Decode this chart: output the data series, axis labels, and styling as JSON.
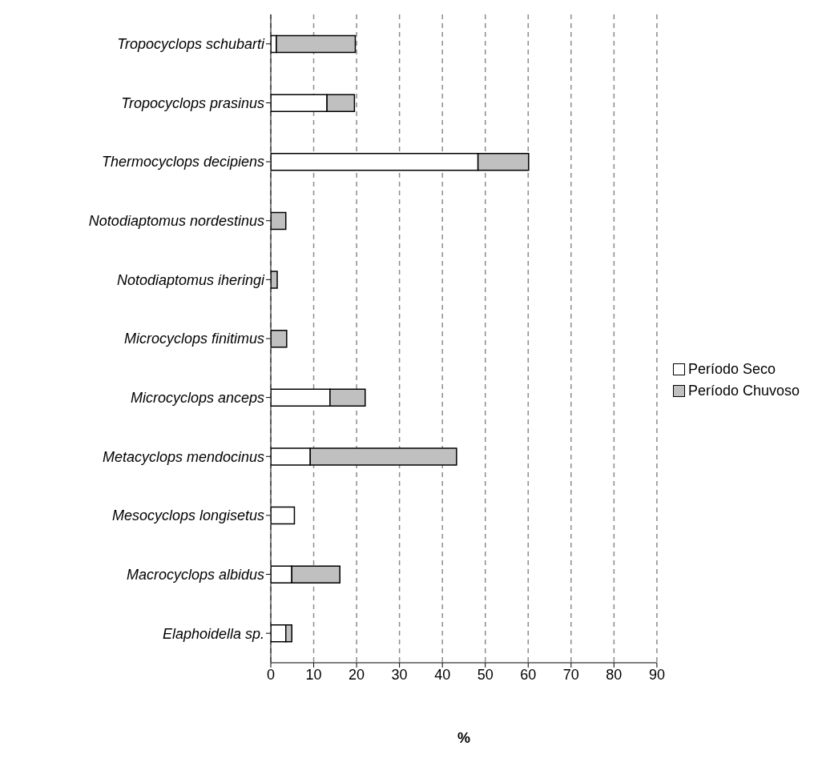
{
  "chart_data": {
    "type": "bar",
    "orientation": "horizontal",
    "stacked": true,
    "xlabel": "%",
    "categories": [
      "Tropocyclops schubarti",
      "Tropocyclops prasinus",
      "Thermocyclops decipiens",
      "Notodiaptomus nordestinus",
      "Notodiaptomus iheringi",
      "Microcyclops finitimus",
      "Microcyclops anceps",
      "Metacyclops mendocinus",
      "Mesocyclops longisetus",
      "Macrocyclops albidus",
      "Elaphoidella sp."
    ],
    "series": [
      {
        "name": "Período Seco",
        "color": "#ffffff",
        "values": [
          1.3,
          13.1,
          48.3,
          0,
          0,
          0,
          13.8,
          9.2,
          5.5,
          4.9,
          3.5
        ]
      },
      {
        "name": "Período Chuvoso",
        "color": "#c0c0c0",
        "values": [
          18.4,
          6.4,
          11.8,
          3.5,
          1.5,
          3.7,
          8.2,
          34.1,
          0,
          11.2,
          1.4
        ]
      }
    ],
    "xlim": [
      0,
      90
    ],
    "xticks": [
      0,
      10,
      20,
      30,
      40,
      50,
      60,
      70,
      80,
      90
    ],
    "grid": "x",
    "legend": "right"
  }
}
